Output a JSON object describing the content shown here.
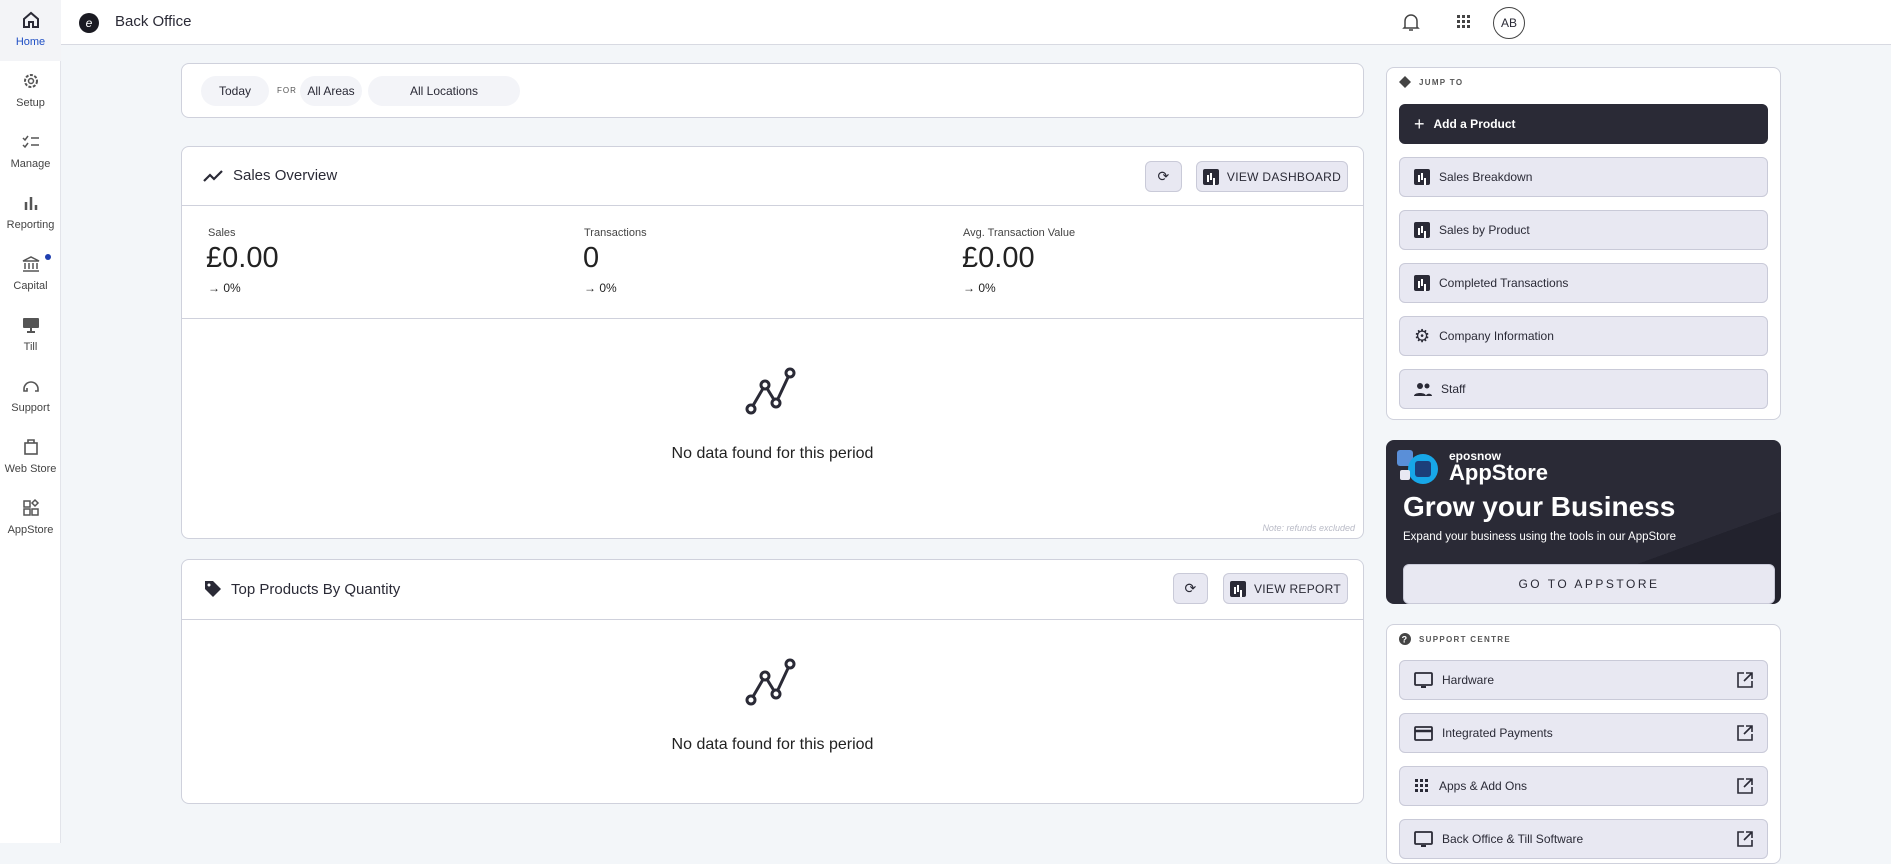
{
  "app": {
    "title": "Back Office",
    "avatar_initials": "AB"
  },
  "sidebar": {
    "items": [
      {
        "label": "Home",
        "icon": "home-icon",
        "active": true
      },
      {
        "label": "Setup",
        "icon": "gear-icon"
      },
      {
        "label": "Manage",
        "icon": "checklist-icon"
      },
      {
        "label": "Reporting",
        "icon": "bar-chart-icon"
      },
      {
        "label": "Capital",
        "icon": "bank-icon",
        "badge": true
      },
      {
        "label": "Till",
        "icon": "till-icon"
      },
      {
        "label": "Support",
        "icon": "headset-icon"
      },
      {
        "label": "Web Store",
        "icon": "shopping-bag-icon"
      },
      {
        "label": "AppStore",
        "icon": "apps-icon"
      }
    ]
  },
  "filters": {
    "period": "Today",
    "for_label": "FOR",
    "area": "All Areas",
    "location": "All Locations"
  },
  "sales_overview": {
    "title": "Sales Overview",
    "view_button": "VIEW DASHBOARD",
    "stats": [
      {
        "label": "Sales",
        "value": "£0.00",
        "change": "0%"
      },
      {
        "label": "Transactions",
        "value": "0",
        "change": "0%"
      },
      {
        "label": "Avg. Transaction Value",
        "value": "£0.00",
        "change": "0%"
      }
    ],
    "empty": "No data found for this period",
    "note": "Note: refunds excluded"
  },
  "top_products": {
    "title": "Top Products By Quantity",
    "view_button": "VIEW REPORT",
    "empty": "No data found for this period"
  },
  "jump_to": {
    "heading": "JUMP TO",
    "primary": "Add a Product",
    "items": [
      {
        "label": "Sales Breakdown",
        "icon": "bar-chart-icon"
      },
      {
        "label": "Sales by Product",
        "icon": "bar-chart-icon"
      },
      {
        "label": "Completed Transactions",
        "icon": "bar-chart-icon"
      },
      {
        "label": "Company Information",
        "icon": "gear-icon"
      },
      {
        "label": "Staff",
        "icon": "people-icon"
      }
    ]
  },
  "appstore": {
    "brand": "eposnow",
    "name": "AppStore",
    "headline": "Grow your Business",
    "sub": "Expand your business using the tools in our AppStore",
    "button": "GO TO APPSTORE"
  },
  "support": {
    "heading": "SUPPORT CENTRE",
    "items": [
      {
        "label": "Hardware",
        "icon": "monitor-icon"
      },
      {
        "label": "Integrated Payments",
        "icon": "credit-card-icon"
      },
      {
        "label": "Apps & Add Ons",
        "icon": "grid-icon"
      },
      {
        "label": "Back Office & Till Software",
        "icon": "monitor-icon"
      }
    ]
  },
  "colors": {
    "dark": "#2a2a36",
    "accent": "#1f4fc4",
    "button_bg": "#e8e8f2",
    "page_bg": "#f3f6f9"
  }
}
